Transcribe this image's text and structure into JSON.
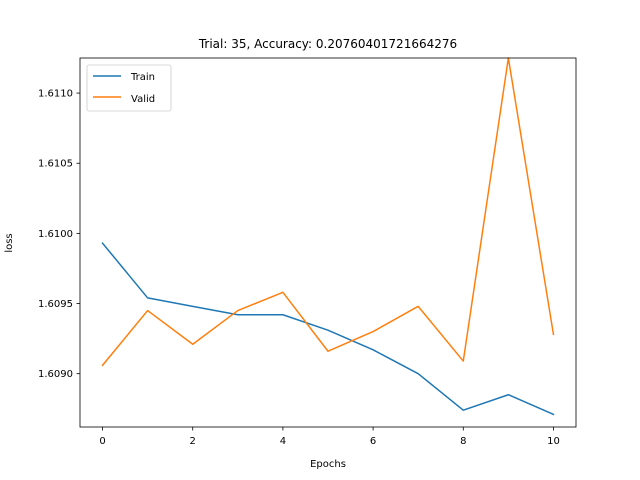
{
  "chart_data": {
    "type": "line",
    "title": "Trial: 35, Accuracy: 0.20760401721664276",
    "xlabel": "Epochs",
    "ylabel": "loss",
    "x": [
      0,
      1,
      2,
      3,
      4,
      5,
      6,
      7,
      8,
      9,
      10
    ],
    "xlim": [
      -0.5,
      10.5
    ],
    "ylim": [
      1.60862,
      1.61125
    ],
    "x_ticks": [
      0,
      2,
      4,
      6,
      8,
      10
    ],
    "y_ticks": [
      "1.6090",
      "1.6095",
      "1.6100",
      "1.6105",
      "1.6110"
    ],
    "grid": false,
    "legend": "top-left",
    "series": [
      {
        "name": "Train",
        "color": "#1f77b4",
        "values": [
          1.60993,
          1.60954,
          1.60948,
          1.60942,
          1.60942,
          1.60931,
          1.60917,
          1.609,
          1.60874,
          1.60885,
          1.60871
        ]
      },
      {
        "name": "Valid",
        "color": "#ff7f0e",
        "values": [
          1.60906,
          1.60945,
          1.60921,
          1.60945,
          1.60958,
          1.60916,
          1.6093,
          1.60948,
          1.60909,
          1.61125,
          1.60928
        ]
      }
    ]
  }
}
